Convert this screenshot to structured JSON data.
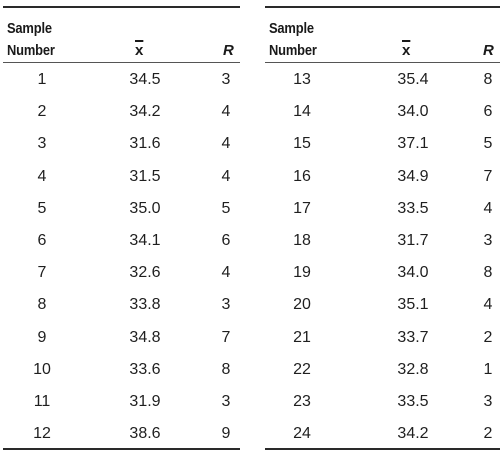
{
  "headers": {
    "sample_line1": "Sample",
    "sample_line2": "Number",
    "xbar": "x",
    "r": "R"
  },
  "left_rows": [
    {
      "sample": "1",
      "xbar": "34.5",
      "r": "3"
    },
    {
      "sample": "2",
      "xbar": "34.2",
      "r": "4"
    },
    {
      "sample": "3",
      "xbar": "31.6",
      "r": "4"
    },
    {
      "sample": "4",
      "xbar": "31.5",
      "r": "4"
    },
    {
      "sample": "5",
      "xbar": "35.0",
      "r": "5"
    },
    {
      "sample": "6",
      "xbar": "34.1",
      "r": "6"
    },
    {
      "sample": "7",
      "xbar": "32.6",
      "r": "4"
    },
    {
      "sample": "8",
      "xbar": "33.8",
      "r": "3"
    },
    {
      "sample": "9",
      "xbar": "34.8",
      "r": "7"
    },
    {
      "sample": "10",
      "xbar": "33.6",
      "r": "8"
    },
    {
      "sample": "11",
      "xbar": "31.9",
      "r": "3"
    },
    {
      "sample": "12",
      "xbar": "38.6",
      "r": "9"
    }
  ],
  "right_rows": [
    {
      "sample": "13",
      "xbar": "35.4",
      "r": "8"
    },
    {
      "sample": "14",
      "xbar": "34.0",
      "r": "6"
    },
    {
      "sample": "15",
      "xbar": "37.1",
      "r": "5"
    },
    {
      "sample": "16",
      "xbar": "34.9",
      "r": "7"
    },
    {
      "sample": "17",
      "xbar": "33.5",
      "r": "4"
    },
    {
      "sample": "18",
      "xbar": "31.7",
      "r": "3"
    },
    {
      "sample": "19",
      "xbar": "34.0",
      "r": "8"
    },
    {
      "sample": "20",
      "xbar": "35.1",
      "r": "4"
    },
    {
      "sample": "21",
      "xbar": "33.7",
      "r": "2"
    },
    {
      "sample": "22",
      "xbar": "32.8",
      "r": "1"
    },
    {
      "sample": "23",
      "xbar": "33.5",
      "r": "3"
    },
    {
      "sample": "24",
      "xbar": "34.2",
      "r": "2"
    }
  ]
}
